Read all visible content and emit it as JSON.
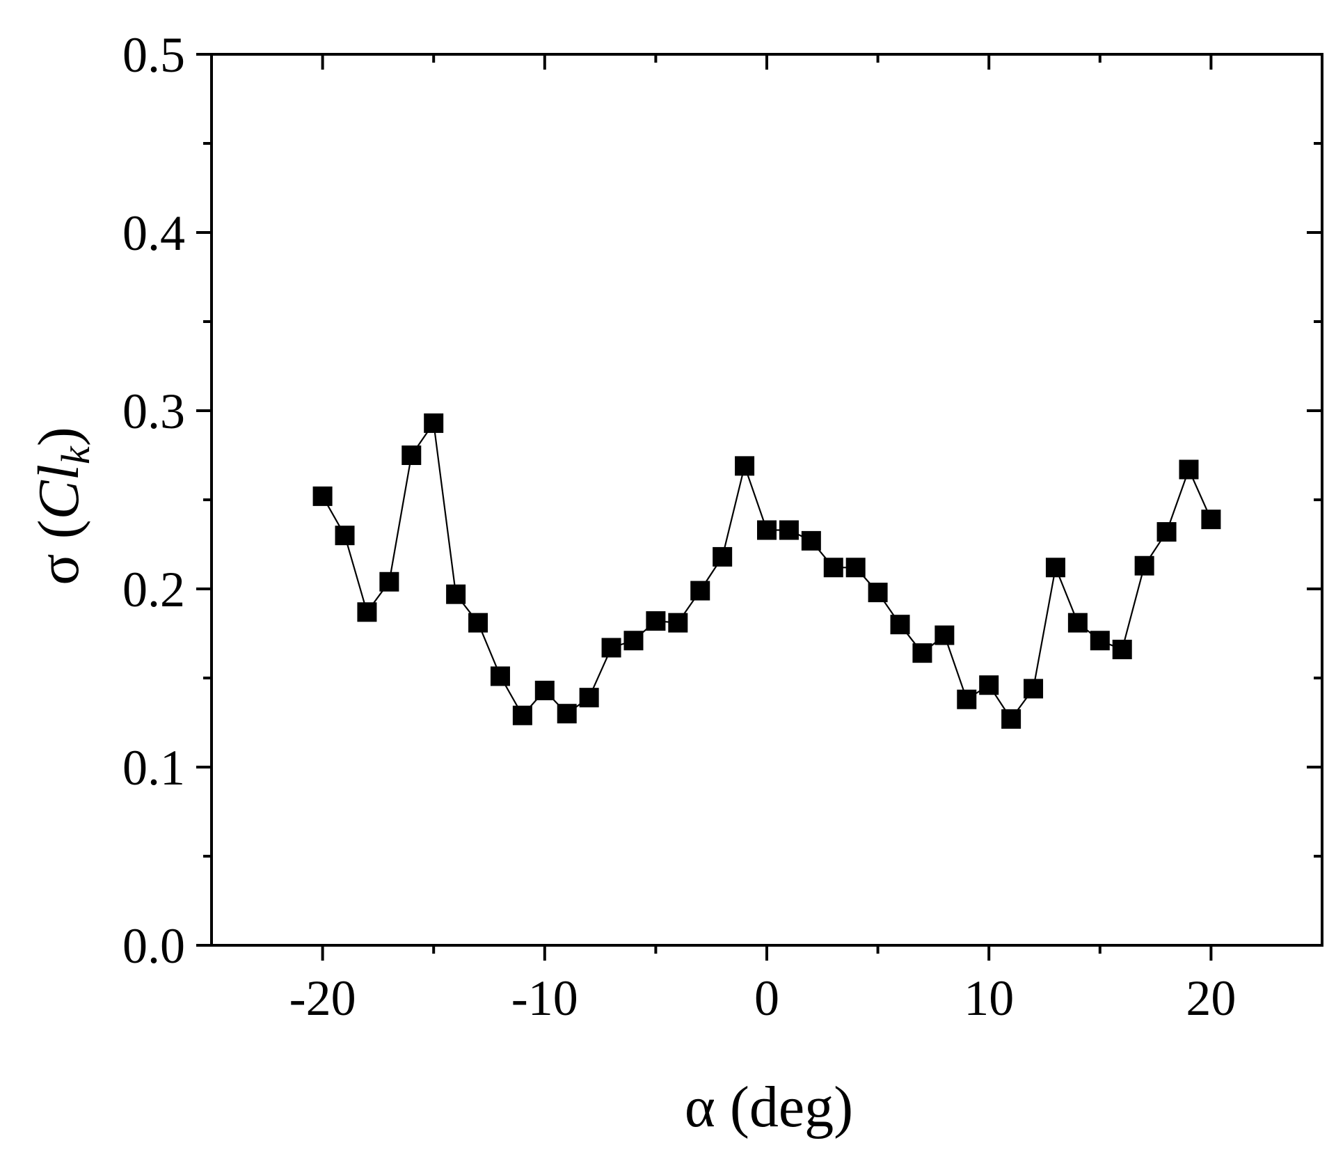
{
  "chart_data": {
    "type": "line",
    "markers": "filled-square",
    "xlabel": "α (deg)",
    "ylabel": {
      "prefix": "σ (",
      "main": "Cl",
      "subscript": "k",
      "suffix": ")"
    },
    "xlim": [
      -25,
      25
    ],
    "ylim": [
      0.0,
      0.5
    ],
    "x_ticks": [
      -20,
      -10,
      0,
      10,
      20
    ],
    "x_tick_labels": [
      "-20",
      "-10",
      "0",
      "10",
      "20"
    ],
    "x_minor_ticks": [
      -15,
      -5,
      5,
      15
    ],
    "y_ticks": [
      0.0,
      0.1,
      0.2,
      0.3,
      0.4,
      0.5
    ],
    "y_tick_labels": [
      "0.0",
      "0.1",
      "0.2",
      "0.3",
      "0.4",
      "0.5"
    ],
    "y_minor_ticks": [
      0.05,
      0.15,
      0.25,
      0.35,
      0.45
    ],
    "grid": false,
    "legend": "none",
    "colors": {
      "series": "#000000",
      "axes": "#000000",
      "background": "#ffffff"
    },
    "series": [
      {
        "x": [
          -20,
          -19,
          -18,
          -17,
          -16,
          -15,
          -14,
          -13,
          -12,
          -11,
          -10,
          -9,
          -8,
          -7,
          -6,
          -5,
          -4,
          -3,
          -2,
          -1,
          0,
          1,
          2,
          3,
          4,
          5,
          6,
          7,
          8,
          9,
          10,
          11,
          12,
          13,
          14,
          15,
          16,
          17,
          18,
          19,
          20
        ],
        "values": [
          0.252,
          0.23,
          0.187,
          0.204,
          0.275,
          0.293,
          0.197,
          0.181,
          0.151,
          0.129,
          0.143,
          0.13,
          0.139,
          0.167,
          0.171,
          0.182,
          0.181,
          0.199,
          0.218,
          0.269,
          0.233,
          0.233,
          0.227,
          0.212,
          0.212,
          0.198,
          0.18,
          0.164,
          0.174,
          0.138,
          0.146,
          0.127,
          0.144,
          0.212,
          0.181,
          0.171,
          0.166,
          0.213,
          0.232,
          0.267,
          0.239
        ]
      }
    ]
  }
}
